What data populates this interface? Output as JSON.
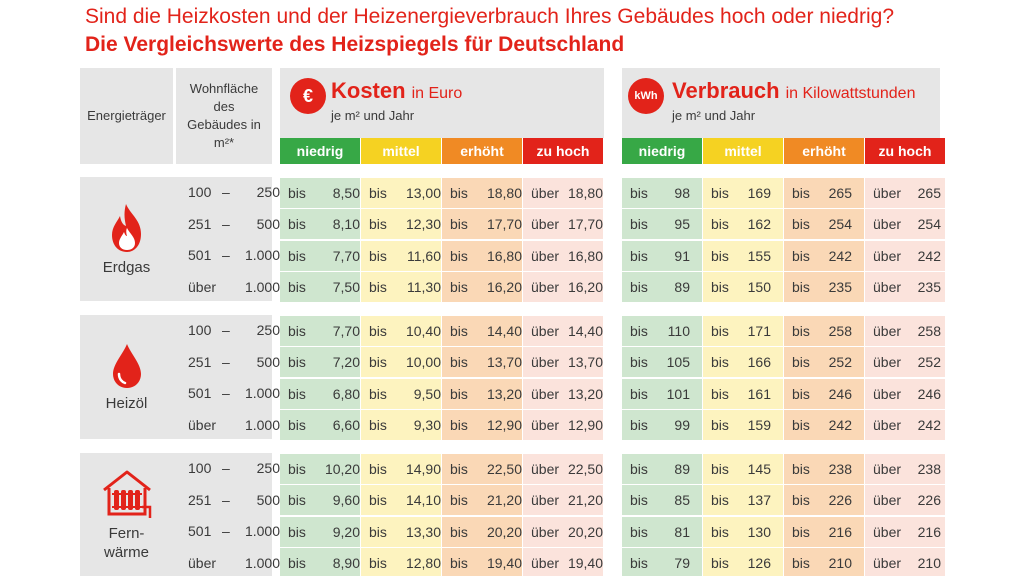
{
  "header": {
    "title": "Sind die Heizkosten und der Heizenergieverbrauch Ihres Gebäudes hoch oder niedrig?",
    "subtitle": "Die Vergleichswerte des Heizspiegels für Deutschland"
  },
  "columns": {
    "energietraeger": "Energieträger",
    "wohnflaeche": [
      "Wohnfläche",
      "des",
      "Gebäudes in",
      "m²*"
    ]
  },
  "kosten": {
    "badge": "€",
    "title": "Kosten",
    "unit": "in Euro",
    "sub": "je m² und Jahr"
  },
  "verbrauch": {
    "badge": "kWh",
    "title": "Verbrauch",
    "unit": "in Kilowattstunden",
    "sub": "je m² und Jahr"
  },
  "levels": [
    "niedrig",
    "mittel",
    "erhöht",
    "zu hoch"
  ],
  "colors": {
    "accent": "#e2231a",
    "level_headers": [
      "#37a846",
      "#f5d222",
      "#f08a24",
      "#e2231a"
    ],
    "level_cells": [
      "#cfe6cf",
      "#fdf3bf",
      "#fad8b6",
      "#fbe3dc"
    ],
    "panel": "#e6e6e6"
  },
  "labels": {
    "bis": "bis",
    "ueber": "über"
  },
  "icons": [
    "flame-icon",
    "oil-drop-icon",
    "radiator-house-icon"
  ],
  "groups": [
    {
      "name": [
        "Erdgas"
      ],
      "rows": [
        {
          "area": [
            "100",
            "–",
            "250"
          ],
          "cost": [
            "8,50",
            "13,00",
            "18,80",
            "18,80"
          ],
          "cons": [
            "98",
            "169",
            "265",
            "265"
          ]
        },
        {
          "area": [
            "251",
            "–",
            "500"
          ],
          "cost": [
            "8,10",
            "12,30",
            "17,70",
            "17,70"
          ],
          "cons": [
            "95",
            "162",
            "254",
            "254"
          ]
        },
        {
          "area": [
            "501",
            "–",
            "1.000"
          ],
          "cost": [
            "7,70",
            "11,60",
            "16,80",
            "16,80"
          ],
          "cons": [
            "91",
            "155",
            "242",
            "242"
          ]
        },
        {
          "area": [
            "über",
            "",
            "1.000"
          ],
          "cost": [
            "7,50",
            "11,30",
            "16,20",
            "16,20"
          ],
          "cons": [
            "89",
            "150",
            "235",
            "235"
          ]
        }
      ]
    },
    {
      "name": [
        "Heizöl"
      ],
      "rows": [
        {
          "area": [
            "100",
            "–",
            "250"
          ],
          "cost": [
            "7,70",
            "10,40",
            "14,40",
            "14,40"
          ],
          "cons": [
            "110",
            "171",
            "258",
            "258"
          ]
        },
        {
          "area": [
            "251",
            "–",
            "500"
          ],
          "cost": [
            "7,20",
            "10,00",
            "13,70",
            "13,70"
          ],
          "cons": [
            "105",
            "166",
            "252",
            "252"
          ]
        },
        {
          "area": [
            "501",
            "–",
            "1.000"
          ],
          "cost": [
            "6,80",
            "9,50",
            "13,20",
            "13,20"
          ],
          "cons": [
            "101",
            "161",
            "246",
            "246"
          ]
        },
        {
          "area": [
            "über",
            "",
            "1.000"
          ],
          "cost": [
            "6,60",
            "9,30",
            "12,90",
            "12,90"
          ],
          "cons": [
            "99",
            "159",
            "242",
            "242"
          ]
        }
      ]
    },
    {
      "name": [
        "Fern-",
        "wärme"
      ],
      "rows": [
        {
          "area": [
            "100",
            "–",
            "250"
          ],
          "cost": [
            "10,20",
            "14,90",
            "22,50",
            "22,50"
          ],
          "cons": [
            "89",
            "145",
            "238",
            "238"
          ]
        },
        {
          "area": [
            "251",
            "–",
            "500"
          ],
          "cost": [
            "9,60",
            "14,10",
            "21,20",
            "21,20"
          ],
          "cons": [
            "85",
            "137",
            "226",
            "226"
          ]
        },
        {
          "area": [
            "501",
            "–",
            "1.000"
          ],
          "cost": [
            "9,20",
            "13,30",
            "20,20",
            "20,20"
          ],
          "cons": [
            "81",
            "130",
            "216",
            "216"
          ]
        },
        {
          "area": [
            "über",
            "",
            "1.000"
          ],
          "cost": [
            "8,90",
            "12,80",
            "19,40",
            "19,40"
          ],
          "cons": [
            "79",
            "126",
            "210",
            "210"
          ]
        }
      ]
    }
  ]
}
